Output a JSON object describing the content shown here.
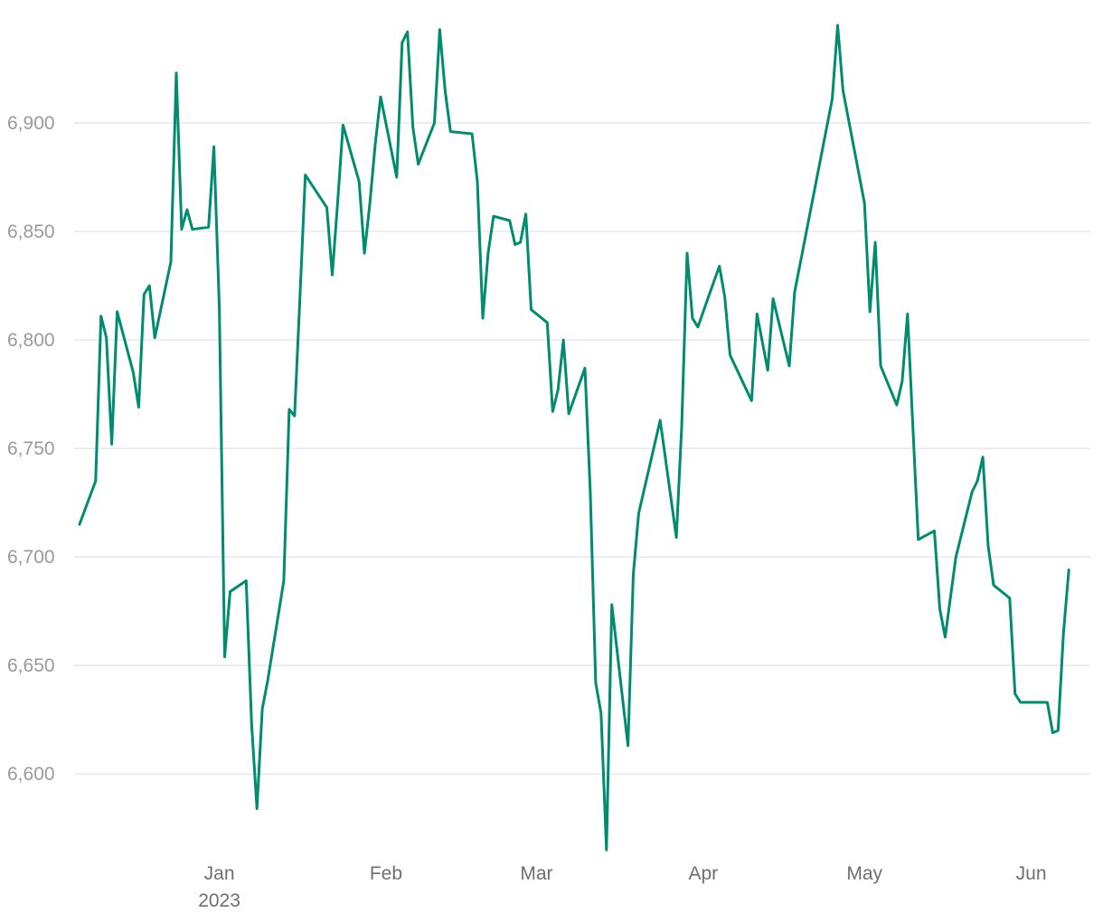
{
  "chart_data": {
    "type": "line",
    "title": "",
    "xlabel": "",
    "ylabel": "",
    "ylim": [
      6563,
      6950
    ],
    "x_range": [
      "2022-12-05",
      "2023-06-12"
    ],
    "grid": true,
    "legend": "none",
    "y_ticks": [
      {
        "value": 6600,
        "label": "6,600"
      },
      {
        "value": 6650,
        "label": "6,650"
      },
      {
        "value": 6700,
        "label": "6,700"
      },
      {
        "value": 6750,
        "label": "6,750"
      },
      {
        "value": 6800,
        "label": "6,800"
      },
      {
        "value": 6850,
        "label": "6,850"
      },
      {
        "value": 6900,
        "label": "6,900"
      }
    ],
    "x_ticks": [
      {
        "date": "2023-01-01",
        "label": "Jan",
        "sublabel": "2023"
      },
      {
        "date": "2023-02-01",
        "label": "Feb",
        "sublabel": ""
      },
      {
        "date": "2023-03-01",
        "label": "Mar",
        "sublabel": ""
      },
      {
        "date": "2023-04-01",
        "label": "Apr",
        "sublabel": ""
      },
      {
        "date": "2023-05-01",
        "label": "May",
        "sublabel": ""
      },
      {
        "date": "2023-06-01",
        "label": "Jun",
        "sublabel": ""
      }
    ],
    "series": [
      {
        "color": "#008c6e",
        "points": [
          [
            "2022-12-06",
            6715
          ],
          [
            "2022-12-09",
            6735
          ],
          [
            "2022-12-10",
            6811
          ],
          [
            "2022-12-11",
            6801
          ],
          [
            "2022-12-12",
            6752
          ],
          [
            "2022-12-13",
            6813
          ],
          [
            "2022-12-16",
            6785
          ],
          [
            "2022-12-17",
            6769
          ],
          [
            "2022-12-18",
            6821
          ],
          [
            "2022-12-19",
            6825
          ],
          [
            "2022-12-20",
            6801
          ],
          [
            "2022-12-23",
            6836
          ],
          [
            "2022-12-24",
            6923
          ],
          [
            "2022-12-25",
            6851
          ],
          [
            "2022-12-26",
            6860
          ],
          [
            "2022-12-27",
            6851
          ],
          [
            "2022-12-30",
            6852
          ],
          [
            "2022-12-31",
            6889
          ],
          [
            "2023-01-01",
            6815
          ],
          [
            "2023-01-02",
            6654
          ],
          [
            "2023-01-03",
            6684
          ],
          [
            "2023-01-06",
            6689
          ],
          [
            "2023-01-07",
            6623
          ],
          [
            "2023-01-08",
            6584
          ],
          [
            "2023-01-09",
            6630
          ],
          [
            "2023-01-10",
            6643
          ],
          [
            "2023-01-13",
            6689
          ],
          [
            "2023-01-14",
            6768
          ],
          [
            "2023-01-15",
            6765
          ],
          [
            "2023-01-16",
            6820
          ],
          [
            "2023-01-17",
            6876
          ],
          [
            "2023-01-21",
            6861
          ],
          [
            "2023-01-22",
            6830
          ],
          [
            "2023-01-23",
            6863
          ],
          [
            "2023-01-24",
            6899
          ],
          [
            "2023-01-27",
            6873
          ],
          [
            "2023-01-28",
            6840
          ],
          [
            "2023-01-29",
            6863
          ],
          [
            "2023-01-30",
            6890
          ],
          [
            "2023-01-31",
            6912
          ],
          [
            "2023-02-03",
            6875
          ],
          [
            "2023-02-04",
            6937
          ],
          [
            "2023-02-05",
            6942
          ],
          [
            "2023-02-06",
            6898
          ],
          [
            "2023-02-07",
            6881
          ],
          [
            "2023-02-10",
            6900
          ],
          [
            "2023-02-11",
            6943
          ],
          [
            "2023-02-12",
            6915
          ],
          [
            "2023-02-13",
            6896
          ],
          [
            "2023-02-17",
            6895
          ],
          [
            "2023-02-18",
            6873
          ],
          [
            "2023-02-19",
            6810
          ],
          [
            "2023-02-20",
            6840
          ],
          [
            "2023-02-21",
            6857
          ],
          [
            "2023-02-24",
            6855
          ],
          [
            "2023-02-25",
            6844
          ],
          [
            "2023-02-26",
            6845
          ],
          [
            "2023-02-27",
            6858
          ],
          [
            "2023-02-28",
            6814
          ],
          [
            "2023-03-03",
            6808
          ],
          [
            "2023-03-04",
            6767
          ],
          [
            "2023-03-05",
            6777
          ],
          [
            "2023-03-06",
            6800
          ],
          [
            "2023-03-07",
            6766
          ],
          [
            "2023-03-10",
            6787
          ],
          [
            "2023-03-11",
            6730
          ],
          [
            "2023-03-12",
            6642
          ],
          [
            "2023-03-13",
            6628
          ],
          [
            "2023-03-14",
            6565
          ],
          [
            "2023-03-15",
            6678
          ],
          [
            "2023-03-18",
            6613
          ],
          [
            "2023-03-19",
            6692
          ],
          [
            "2023-03-20",
            6720
          ],
          [
            "2023-03-24",
            6763
          ],
          [
            "2023-03-27",
            6709
          ],
          [
            "2023-03-28",
            6760
          ],
          [
            "2023-03-29",
            6840
          ],
          [
            "2023-03-30",
            6810
          ],
          [
            "2023-03-31",
            6806
          ],
          [
            "2023-04-03",
            6827
          ],
          [
            "2023-04-04",
            6834
          ],
          [
            "2023-04-05",
            6820
          ],
          [
            "2023-04-06",
            6793
          ],
          [
            "2023-04-10",
            6772
          ],
          [
            "2023-04-11",
            6812
          ],
          [
            "2023-04-13",
            6786
          ],
          [
            "2023-04-14",
            6819
          ],
          [
            "2023-04-17",
            6788
          ],
          [
            "2023-04-18",
            6822
          ],
          [
            "2023-04-25",
            6911
          ],
          [
            "2023-04-26",
            6945
          ],
          [
            "2023-04-27",
            6915
          ],
          [
            "2023-05-01",
            6863
          ],
          [
            "2023-05-02",
            6813
          ],
          [
            "2023-05-03",
            6845
          ],
          [
            "2023-05-04",
            6788
          ],
          [
            "2023-05-07",
            6770
          ],
          [
            "2023-05-08",
            6781
          ],
          [
            "2023-05-09",
            6812
          ],
          [
            "2023-05-10",
            6760
          ],
          [
            "2023-05-11",
            6708
          ],
          [
            "2023-05-14",
            6712
          ],
          [
            "2023-05-15",
            6676
          ],
          [
            "2023-05-16",
            6663
          ],
          [
            "2023-05-18",
            6700
          ],
          [
            "2023-05-21",
            6730
          ],
          [
            "2023-05-22",
            6735
          ],
          [
            "2023-05-23",
            6746
          ],
          [
            "2023-05-24",
            6705
          ],
          [
            "2023-05-25",
            6687
          ],
          [
            "2023-05-28",
            6681
          ],
          [
            "2023-05-29",
            6637
          ],
          [
            "2023-05-30",
            6633
          ],
          [
            "2023-06-04",
            6633
          ],
          [
            "2023-06-05",
            6619
          ],
          [
            "2023-06-06",
            6620
          ],
          [
            "2023-06-07",
            6665
          ],
          [
            "2023-06-08",
            6694
          ]
        ]
      }
    ]
  }
}
